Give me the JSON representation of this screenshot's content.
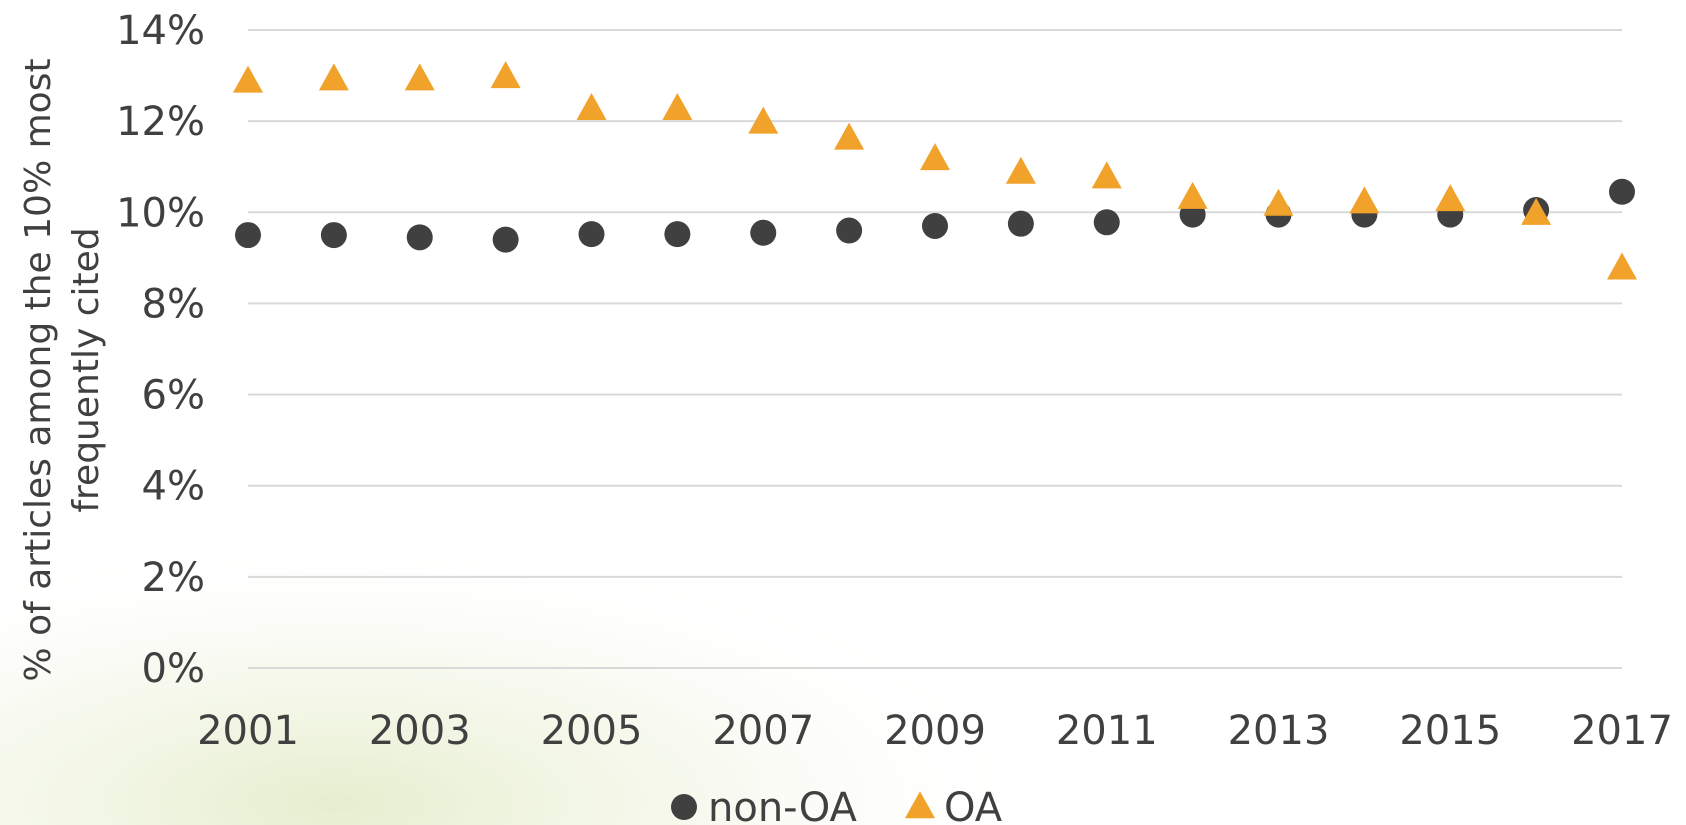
{
  "chart_data": {
    "type": "scatter",
    "ylabel_line1": "% of articles among the 10% most",
    "ylabel_line2": "frequently cited",
    "xlim": [
      2001,
      2017
    ],
    "ylim": [
      0,
      14
    ],
    "y_ticks": [
      0,
      2,
      4,
      6,
      8,
      10,
      12,
      14
    ],
    "y_tick_labels": [
      "0%",
      "2%",
      "4%",
      "6%",
      "8%",
      "10%",
      "12%",
      "14%"
    ],
    "x_ticks": [
      2001,
      2003,
      2005,
      2007,
      2009,
      2011,
      2013,
      2015,
      2017
    ],
    "x_tick_labels": [
      "2001",
      "2003",
      "2005",
      "2007",
      "2009",
      "2011",
      "2013",
      "2015",
      "2017"
    ],
    "grid": true,
    "legend_position": "bottom",
    "x": [
      2001,
      2002,
      2003,
      2004,
      2005,
      2006,
      2007,
      2008,
      2009,
      2010,
      2011,
      2012,
      2013,
      2014,
      2015,
      2016,
      2017
    ],
    "series": [
      {
        "name": "non-OA",
        "marker": "circle",
        "color": "#404040",
        "values": [
          9.5,
          9.5,
          9.45,
          9.4,
          9.52,
          9.52,
          9.55,
          9.6,
          9.7,
          9.75,
          9.78,
          9.95,
          9.95,
          9.95,
          9.95,
          10.05,
          10.45
        ]
      },
      {
        "name": "OA",
        "marker": "triangle",
        "color": "#f0a22a",
        "values": [
          12.85,
          12.9,
          12.9,
          12.95,
          12.25,
          12.25,
          11.95,
          11.6,
          11.15,
          10.85,
          10.75,
          10.3,
          10.15,
          10.2,
          10.25,
          9.95,
          8.75
        ]
      }
    ]
  }
}
